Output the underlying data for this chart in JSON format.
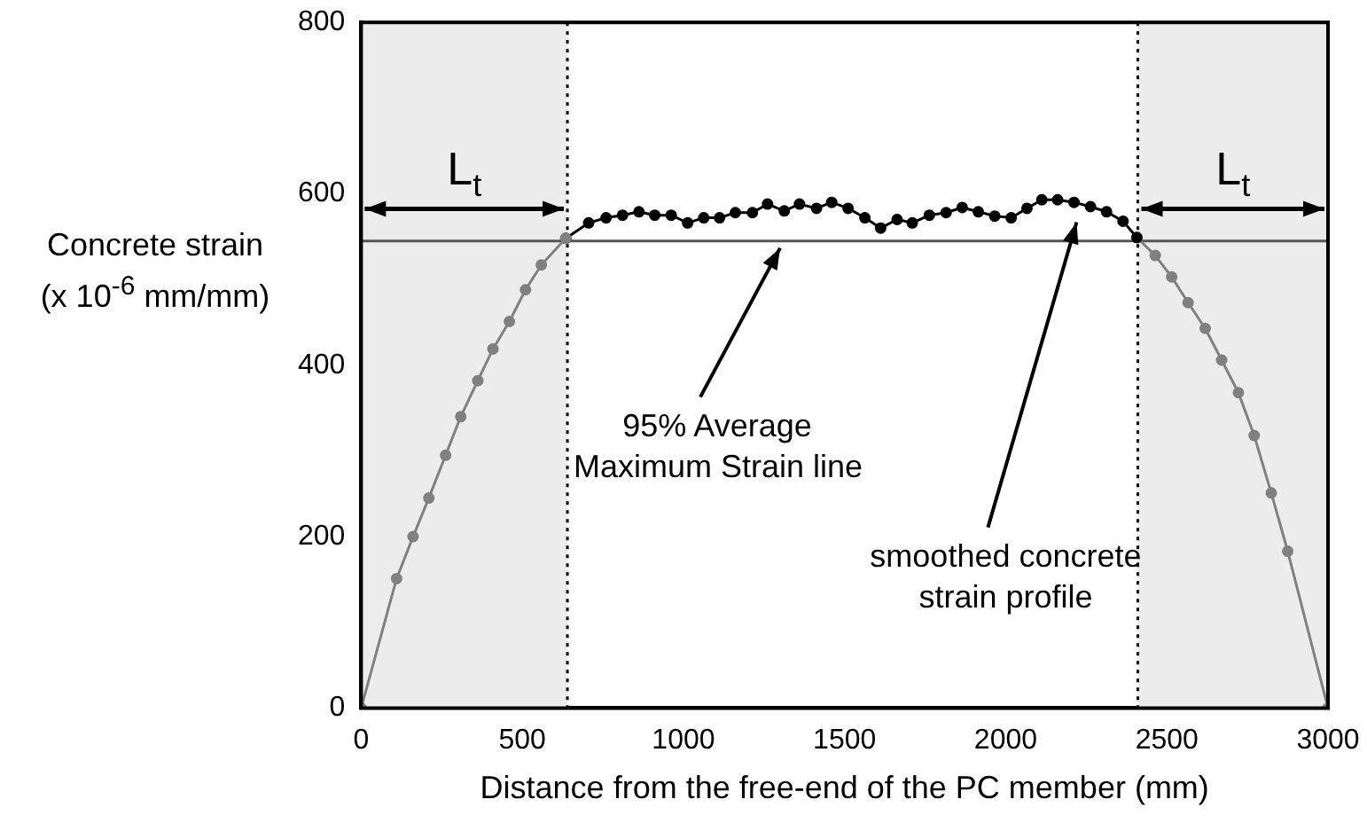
{
  "chart_data": {
    "type": "line",
    "xlabel": "Distance from the free-end of the PC member (mm)",
    "ylabel": "Concrete strain\n(x 10$^{-6}$ mm/mm)",
    "xlim": [
      0,
      3000
    ],
    "xticks": [
      0,
      500,
      1000,
      1500,
      2000,
      2500,
      3000
    ],
    "ylim": [
      0,
      800
    ],
    "yticks": [
      0,
      200,
      400,
      600,
      800
    ],
    "grid": false,
    "legend": false,
    "marker": "circle",
    "line_style": "solid",
    "series": [
      {
        "color": "#808080",
        "x": [
          0,
          110,
          161,
          210,
          262,
          309,
          362,
          409,
          460,
          510,
          559,
          635
        ],
        "values": [
          0,
          151,
          200,
          245,
          295,
          340,
          382,
          419,
          451,
          488,
          517,
          548
        ]
      },
      {
        "color": "#000000",
        "x": [
          635,
          706,
          760,
          811,
          862,
          911,
          962,
          1013,
          1063,
          1112,
          1161,
          1214,
          1261,
          1313,
          1360,
          1413,
          1460,
          1511,
          1563,
          1612,
          1663,
          1710,
          1763,
          1815,
          1865,
          1915,
          1966,
          2017,
          2066,
          2112,
          2161,
          2212,
          2263,
          2313,
          2364,
          2407
        ],
        "values": [
          548,
          566,
          572,
          575,
          579,
          575,
          575,
          566,
          572,
          572,
          578,
          578,
          588,
          580,
          588,
          583,
          590,
          583,
          572,
          560,
          570,
          566,
          575,
          578,
          584,
          579,
          574,
          572,
          583,
          593,
          593,
          590,
          585,
          579,
          568,
          549
        ]
      },
      {
        "color": "#808080",
        "x": [
          2407,
          2464,
          2515,
          2566,
          2619,
          2670,
          2722,
          2771,
          2824,
          2875,
          3000
        ],
        "values": [
          549,
          528,
          503,
          473,
          443,
          406,
          368,
          318,
          251,
          183,
          0
        ]
      }
    ],
    "ref_lines": [
      {
        "axis": "y",
        "value": 545,
        "color": "#555555",
        "line_style": "solid"
      },
      {
        "axis": "x",
        "value": 640,
        "color": "#000000",
        "line_style": "dotted"
      },
      {
        "axis": "x",
        "value": 2410,
        "color": "#000000",
        "line_style": "dotted"
      }
    ],
    "bands": [
      {
        "axis": "x",
        "from": 0,
        "to": 640,
        "label": "L$_{t}$",
        "color": "#ececec"
      },
      {
        "axis": "x",
        "from": 2410,
        "to": 3000,
        "label": "L$_{t}$",
        "color": "#ececec"
      }
    ],
    "annotations": [
      {
        "text": "95% Average\nMaximum Strain line",
        "x": 1300,
        "y": 545
      },
      {
        "text": "smoothed concrete\nstrain profile",
        "x": 2220,
        "y": 575
      }
    ]
  }
}
